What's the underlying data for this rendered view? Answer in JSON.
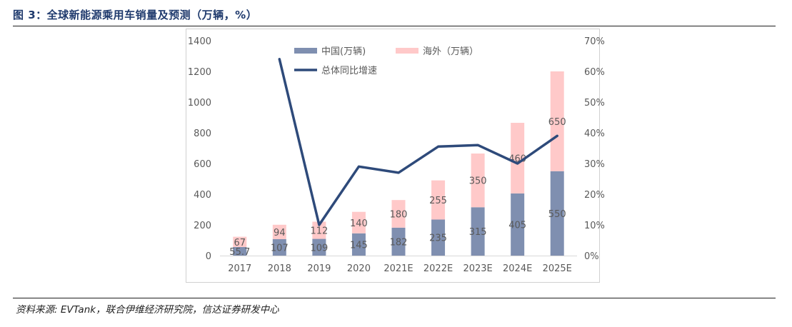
{
  "figure_title": "图 3：全球新能源乘用车销量及预测（万辆，%）",
  "source": "资料来源: EVTank，联合伊维经济研究院，信达证券研发中心",
  "colors": {
    "china": "#7f8fb0",
    "overseas": "#ffc9c9",
    "growth": "#2e4a7a",
    "axis_text": "#595959",
    "label_text": "#595959"
  },
  "chart_data": {
    "type": "bar",
    "stacked": true,
    "title": "",
    "categories": [
      "2017",
      "2018",
      "2019",
      "2020",
      "2021E",
      "2022E",
      "2023E",
      "2024E",
      "2025E"
    ],
    "series": [
      {
        "name": "中国(万辆)",
        "axis": "left",
        "type": "bar",
        "values": [
          55.7,
          107,
          109,
          145,
          182,
          235,
          315,
          405,
          550
        ],
        "labels": [
          "55.7",
          "107",
          "109",
          "145",
          "182",
          "235",
          "315",
          "405",
          "550"
        ]
      },
      {
        "name": "海外（万辆）",
        "axis": "left",
        "type": "bar",
        "values": [
          67,
          94,
          112,
          140,
          180,
          255,
          350,
          460,
          650
        ],
        "labels": [
          "67",
          "94",
          "112",
          "140",
          "180",
          "255",
          "350",
          "460",
          "650"
        ]
      },
      {
        "name": "总体同比增速",
        "axis": "right",
        "type": "line",
        "values": [
          null,
          64,
          10,
          29,
          27,
          35.5,
          36,
          30,
          39
        ]
      }
    ],
    "yleft": {
      "min": 0,
      "max": 1400,
      "ticks": [
        "0",
        "200",
        "400",
        "600",
        "800",
        "1000",
        "1200",
        "1400"
      ]
    },
    "yright": {
      "min": 0,
      "max": 70,
      "ticks": [
        "0%",
        "10%",
        "20%",
        "30%",
        "40%",
        "50%",
        "60%",
        "70%"
      ]
    },
    "grid": false,
    "legend_position": "top"
  }
}
